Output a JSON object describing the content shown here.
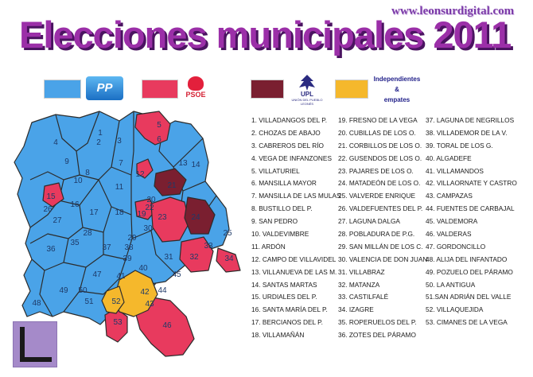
{
  "website": "www.leonsurdigital.com",
  "title": "Elecciones municipales 2011",
  "legend": [
    {
      "party": "PP",
      "color": "#4aa3e8",
      "label": "PP"
    },
    {
      "party": "PSOE",
      "color": "#e83a5e",
      "label": "PSOE"
    },
    {
      "party": "UPL",
      "color": "#7a1f30",
      "label": "UPL",
      "sublabel": "UNIÓN DEL PUEBLO LEONÉS"
    },
    {
      "party": "Independientes",
      "color": "#f5b82c",
      "label_lines": [
        "Independientes",
        "&",
        "empates"
      ]
    }
  ],
  "municipalities": [
    "1. VILLADANGOS DEL P.",
    "2. CHOZAS DE ABAJO",
    "3. CABREROS DEL RÍO",
    "4. VEGA DE INFANZONES",
    "5. VILLATURIEL",
    "6. MANSILLA MAYOR",
    "7. MANSILLA DE LAS MULAS",
    "8. BUSTILLO DEL P.",
    "9. SAN PEDRO",
    "10. VALDEVIMBRE",
    "11. ARDÓN",
    "12. CAMPO DE VILLAVIDEL",
    "13. VILLANUEVA DE LAS M.",
    "14. SANTAS MARTAS",
    "15. URDIALES DEL P.",
    "16. SANTA MARÍA DEL P.",
    "17. BERCIANOS DEL P.",
    "18. VILLAMAÑÁN",
    "19. FRESNO DE LA VEGA",
    "20. CUBILLAS DE LOS O.",
    "21. CORBILLOS DE LOS O.",
    "22. GUSENDOS DE LOS O.",
    "23. PAJARES DE LOS O.",
    "24. MATADEÓN DE LOS O.",
    "25. VALVERDE ENRIQUE",
    "26. VALDEFUENTES DEL P.",
    "27. LAGUNA DALGA",
    "28. POBLADURA DE P.G.",
    "29. SAN MILLÁN DE LOS C.",
    "30. VALENCIA DE DON JUAN",
    "31. VILLABRAZ",
    "32. MATANZA",
    "33. CASTILFALÉ",
    "34.  IZAGRE",
    "35. ROPERUELOS DEL P.",
    "36. ZOTES DEL PÁRAMO",
    "37. LAGUNA DE NEGRILLOS",
    "38. VILLADEMOR DE LA V.",
    "39. TORAL DE LOS G.",
    "40. ALGADEFE",
    "41. VILLAMANDOS",
    "42. VILLAORNATE Y CASTRO",
    "43. CAMPAZAS",
    "44. FUENTES DE CARBAJAL",
    "45. VALDEMORA",
    "46. VALDERAS",
    "47. GORDONCILLO",
    "48. ALIJA DEL INFANTADO",
    "49. POZUELO DEL PÁRAMO",
    "50. LA ANTIGUA",
    "51.SAN ADRIÁN DEL VALLE",
    "52. VILLAQUEJIDA",
    "53. CIMANES DE LA VEGA"
  ],
  "map_labels": [
    "1",
    "2",
    "3",
    "4",
    "5",
    "6",
    "7",
    "8",
    "9",
    "10",
    "11",
    "12",
    "13",
    "14",
    "15",
    "16",
    "17",
    "18",
    "19",
    "20",
    "21",
    "22",
    "23",
    "24",
    "25",
    "26",
    "27",
    "28",
    "29",
    "30",
    "31",
    "32",
    "33",
    "34",
    "35",
    "36",
    "37",
    "38",
    "39",
    "40",
    "41",
    "42",
    "43",
    "44",
    "45",
    "46",
    "47",
    "48",
    "49",
    "50",
    "51",
    "52",
    "53"
  ]
}
